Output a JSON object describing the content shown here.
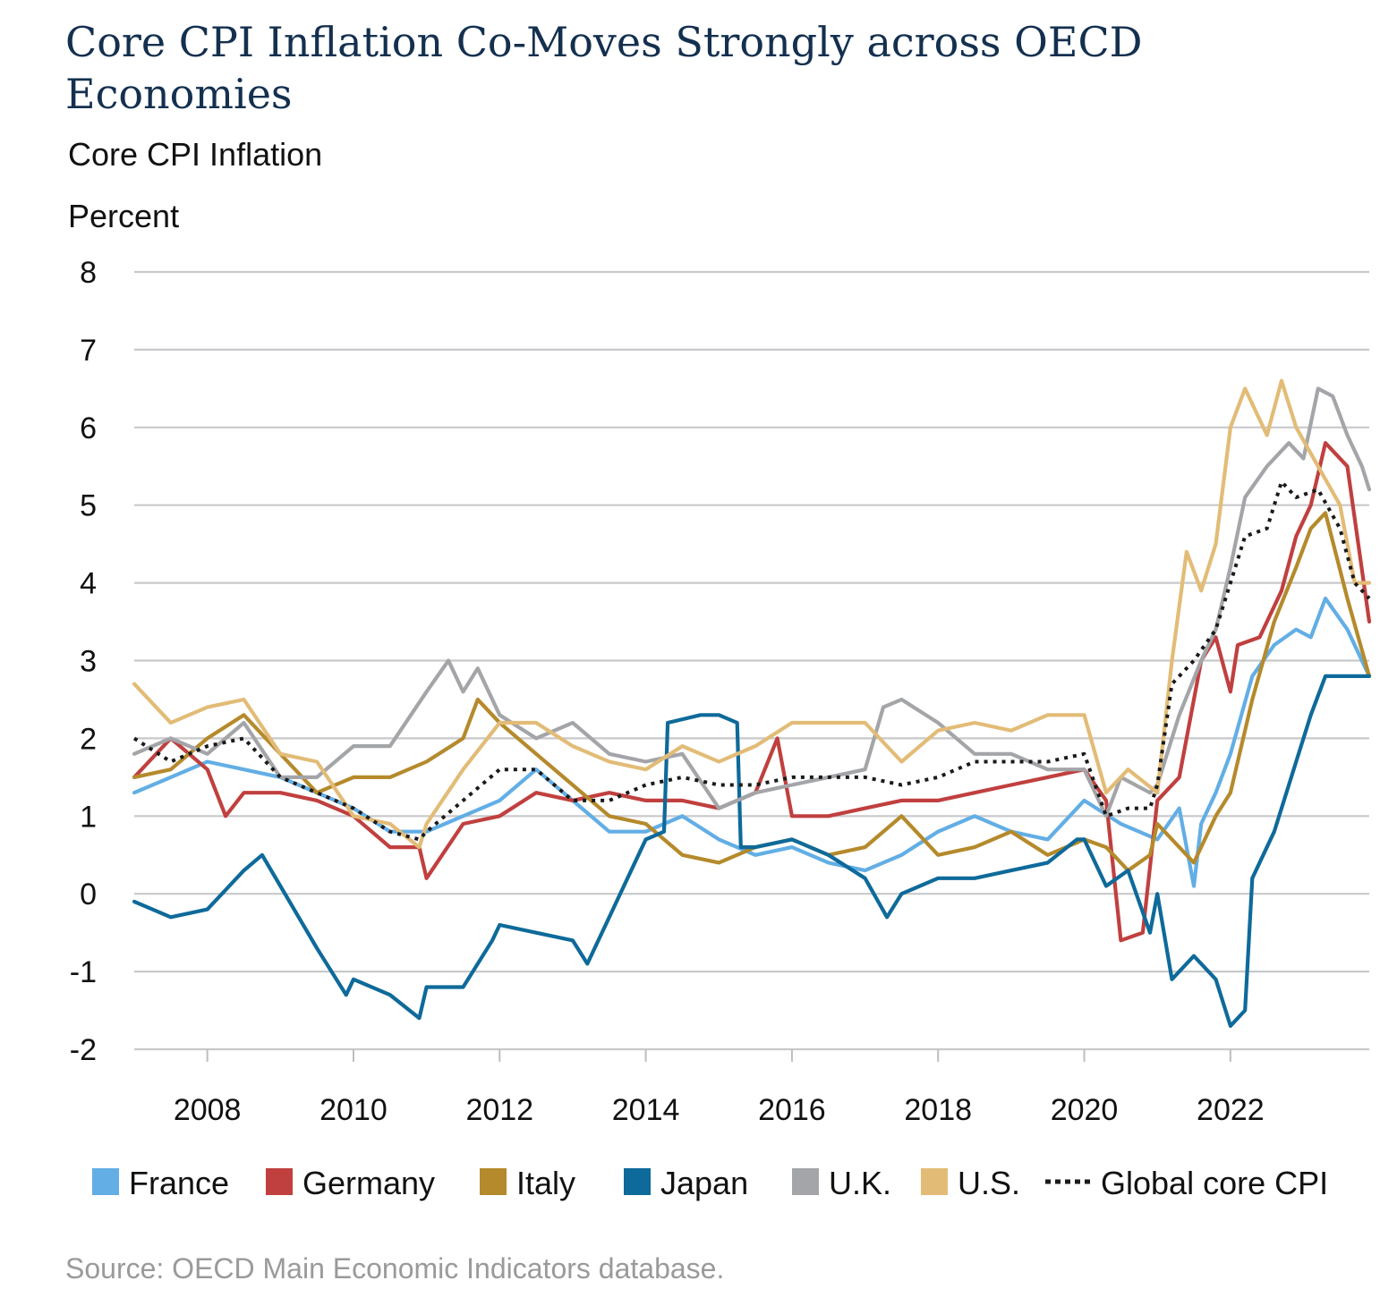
{
  "title": "Core CPI Inflation Co-Moves Strongly across OECD Economies",
  "subtitle": "Core CPI Inflation",
  "unit_label": "Percent",
  "source": "Source: OECD Main Economic Indicators database.",
  "chart_data": {
    "type": "line",
    "title": "Core CPI Inflation Co-Moves Strongly across OECD Economies",
    "ylabel": "Percent",
    "xlabel": "",
    "ylim": [
      -2,
      8
    ],
    "yticks": [
      -2,
      -1,
      0,
      1,
      2,
      3,
      4,
      5,
      6,
      7,
      8
    ],
    "xlim": [
      2007.0,
      2023.9
    ],
    "xticks": [
      2008,
      2010,
      2012,
      2014,
      2016,
      2018,
      2020,
      2022
    ],
    "grid": "horizontal",
    "legend_position": "bottom",
    "series": [
      {
        "name": "France",
        "color": "#62aee5",
        "dash": "solid",
        "x": [
          2007.0,
          2007.5,
          2008.0,
          2008.5,
          2009.0,
          2009.5,
          2010.0,
          2010.5,
          2011.0,
          2011.5,
          2012.0,
          2012.5,
          2013.0,
          2013.5,
          2014.0,
          2014.5,
          2015.0,
          2015.5,
          2016.0,
          2016.5,
          2017.0,
          2017.5,
          2018.0,
          2018.5,
          2019.0,
          2019.5,
          2020.0,
          2020.5,
          2021.0,
          2021.3,
          2021.5,
          2021.6,
          2021.8,
          2022.0,
          2022.3,
          2022.6,
          2022.9,
          2023.1,
          2023.3,
          2023.6,
          2023.9
        ],
        "y": [
          1.3,
          1.5,
          1.7,
          1.6,
          1.5,
          1.3,
          1.1,
          0.8,
          0.8,
          1.0,
          1.2,
          1.6,
          1.2,
          0.8,
          0.8,
          1.0,
          0.7,
          0.5,
          0.6,
          0.4,
          0.3,
          0.5,
          0.8,
          1.0,
          0.8,
          0.7,
          1.2,
          0.9,
          0.7,
          1.1,
          0.1,
          0.9,
          1.3,
          1.8,
          2.8,
          3.2,
          3.4,
          3.3,
          3.8,
          3.4,
          2.8
        ]
      },
      {
        "name": "Germany",
        "color": "#c0403f",
        "dash": "solid",
        "x": [
          2007.0,
          2007.5,
          2008.0,
          2008.25,
          2008.5,
          2009.0,
          2009.5,
          2010.0,
          2010.5,
          2010.9,
          2011.0,
          2011.5,
          2012.0,
          2012.5,
          2013.0,
          2013.5,
          2014.0,
          2014.5,
          2015.0,
          2015.5,
          2015.8,
          2016.0,
          2016.5,
          2017.0,
          2017.5,
          2018.0,
          2018.5,
          2019.0,
          2019.5,
          2020.0,
          2020.3,
          2020.5,
          2020.8,
          2021.0,
          2021.3,
          2021.6,
          2021.8,
          2022.0,
          2022.1,
          2022.4,
          2022.7,
          2022.9,
          2023.1,
          2023.3,
          2023.6,
          2023.9
        ],
        "y": [
          1.5,
          2.0,
          1.6,
          1.0,
          1.3,
          1.3,
          1.2,
          1.0,
          0.6,
          0.6,
          0.2,
          0.9,
          1.0,
          1.3,
          1.2,
          1.3,
          1.2,
          1.2,
          1.1,
          1.3,
          2.0,
          1.0,
          1.0,
          1.1,
          1.2,
          1.2,
          1.3,
          1.4,
          1.5,
          1.6,
          1.2,
          -0.6,
          -0.5,
          1.2,
          1.5,
          3.0,
          3.3,
          2.6,
          3.2,
          3.3,
          3.9,
          4.6,
          5.0,
          5.8,
          5.5,
          3.5
        ]
      },
      {
        "name": "Italy",
        "color": "#b58a2c",
        "dash": "solid",
        "x": [
          2007.0,
          2007.5,
          2008.0,
          2008.5,
          2009.0,
          2009.5,
          2010.0,
          2010.5,
          2011.0,
          2011.5,
          2011.7,
          2012.0,
          2012.5,
          2013.0,
          2013.5,
          2014.0,
          2014.5,
          2015.0,
          2015.5,
          2016.0,
          2016.5,
          2017.0,
          2017.5,
          2018.0,
          2018.5,
          2019.0,
          2019.5,
          2020.0,
          2020.3,
          2020.6,
          2020.9,
          2021.0,
          2021.3,
          2021.5,
          2021.8,
          2022.0,
          2022.3,
          2022.6,
          2022.9,
          2023.1,
          2023.3,
          2023.6,
          2023.9
        ],
        "y": [
          1.5,
          1.6,
          2.0,
          2.3,
          1.8,
          1.3,
          1.5,
          1.5,
          1.7,
          2.0,
          2.5,
          2.2,
          1.8,
          1.4,
          1.0,
          0.9,
          0.5,
          0.4,
          0.6,
          0.7,
          0.5,
          0.6,
          1.0,
          0.5,
          0.6,
          0.8,
          0.5,
          0.7,
          0.6,
          0.3,
          0.5,
          0.9,
          0.6,
          0.4,
          1.0,
          1.3,
          2.5,
          3.5,
          4.2,
          4.7,
          4.9,
          3.8,
          2.8
        ]
      },
      {
        "name": "Japan",
        "color": "#0e6a9a",
        "dash": "solid",
        "x": [
          2007.0,
          2007.5,
          2008.0,
          2008.5,
          2008.75,
          2009.0,
          2009.5,
          2009.9,
          2010.0,
          2010.5,
          2010.9,
          2011.0,
          2011.5,
          2011.9,
          2012.0,
          2012.5,
          2013.0,
          2013.2,
          2013.5,
          2013.9,
          2014.0,
          2014.25,
          2014.3,
          2014.75,
          2015.0,
          2015.25,
          2015.3,
          2015.5,
          2016.0,
          2016.5,
          2017.0,
          2017.3,
          2017.5,
          2018.0,
          2018.5,
          2019.0,
          2019.5,
          2019.9,
          2020.0,
          2020.3,
          2020.6,
          2020.9,
          2021.0,
          2021.2,
          2021.5,
          2021.8,
          2022.0,
          2022.2,
          2022.3,
          2022.6,
          2022.9,
          2023.1,
          2023.3,
          2023.6,
          2023.9
        ],
        "y": [
          -0.1,
          -0.3,
          -0.2,
          0.3,
          0.5,
          0.1,
          -0.7,
          -1.3,
          -1.1,
          -1.3,
          -1.6,
          -1.2,
          -1.2,
          -0.6,
          -0.4,
          -0.5,
          -0.6,
          -0.9,
          -0.3,
          0.5,
          0.7,
          0.8,
          2.2,
          2.3,
          2.3,
          2.2,
          0.6,
          0.6,
          0.7,
          0.5,
          0.2,
          -0.3,
          0.0,
          0.2,
          0.2,
          0.3,
          0.4,
          0.7,
          0.7,
          0.1,
          0.3,
          -0.5,
          0.0,
          -1.1,
          -0.8,
          -1.1,
          -1.7,
          -1.5,
          0.2,
          0.8,
          1.7,
          2.3,
          2.8,
          2.8,
          2.8
        ]
      },
      {
        "name": "U.K.",
        "color": "#a3a5a8",
        "dash": "solid",
        "x": [
          2007.0,
          2007.5,
          2008.0,
          2008.5,
          2009.0,
          2009.5,
          2010.0,
          2010.5,
          2011.0,
          2011.3,
          2011.5,
          2011.7,
          2012.0,
          2012.5,
          2013.0,
          2013.5,
          2014.0,
          2014.5,
          2015.0,
          2015.5,
          2016.0,
          2016.5,
          2017.0,
          2017.25,
          2017.5,
          2018.0,
          2018.5,
          2019.0,
          2019.5,
          2020.0,
          2020.3,
          2020.5,
          2020.9,
          2021.0,
          2021.3,
          2021.6,
          2021.8,
          2022.0,
          2022.2,
          2022.5,
          2022.8,
          2023.0,
          2023.2,
          2023.4,
          2023.6,
          2023.8,
          2023.9
        ],
        "y": [
          1.8,
          2.0,
          1.8,
          2.2,
          1.5,
          1.5,
          1.9,
          1.9,
          2.6,
          3.0,
          2.6,
          2.9,
          2.3,
          2.0,
          2.2,
          1.8,
          1.7,
          1.8,
          1.1,
          1.3,
          1.4,
          1.5,
          1.6,
          2.4,
          2.5,
          2.2,
          1.8,
          1.8,
          1.6,
          1.6,
          1.0,
          1.5,
          1.3,
          1.4,
          2.3,
          3.0,
          3.4,
          4.2,
          5.1,
          5.5,
          5.8,
          5.6,
          6.5,
          6.4,
          5.9,
          5.5,
          5.2
        ]
      },
      {
        "name": "U.S.",
        "color": "#e2bc77",
        "dash": "solid",
        "x": [
          2007.0,
          2007.5,
          2008.0,
          2008.5,
          2009.0,
          2009.5,
          2010.0,
          2010.5,
          2010.9,
          2011.0,
          2011.5,
          2012.0,
          2012.5,
          2013.0,
          2013.5,
          2014.0,
          2014.5,
          2015.0,
          2015.5,
          2016.0,
          2016.5,
          2017.0,
          2017.5,
          2018.0,
          2018.5,
          2019.0,
          2019.5,
          2020.0,
          2020.3,
          2020.6,
          2021.0,
          2021.2,
          2021.4,
          2021.6,
          2021.8,
          2022.0,
          2022.2,
          2022.5,
          2022.7,
          2022.9,
          2023.2,
          2023.5,
          2023.7,
          2023.9
        ],
        "y": [
          2.7,
          2.2,
          2.4,
          2.5,
          1.8,
          1.7,
          1.0,
          0.9,
          0.6,
          0.9,
          1.6,
          2.2,
          2.2,
          1.9,
          1.7,
          1.6,
          1.9,
          1.7,
          1.9,
          2.2,
          2.2,
          2.2,
          1.7,
          2.1,
          2.2,
          2.1,
          2.3,
          2.3,
          1.3,
          1.6,
          1.3,
          3.0,
          4.4,
          3.9,
          4.5,
          6.0,
          6.5,
          5.9,
          6.6,
          6.0,
          5.5,
          5.0,
          4.0,
          4.0
        ]
      },
      {
        "name": "Global core CPI",
        "color": "#1a1a1a",
        "dash": "dotted",
        "x": [
          2007.0,
          2007.5,
          2008.0,
          2008.5,
          2009.0,
          2009.5,
          2010.0,
          2010.5,
          2010.9,
          2011.0,
          2011.5,
          2012.0,
          2012.5,
          2013.0,
          2013.5,
          2014.0,
          2014.5,
          2015.0,
          2015.5,
          2016.0,
          2016.5,
          2017.0,
          2017.5,
          2018.0,
          2018.5,
          2019.0,
          2019.5,
          2020.0,
          2020.3,
          2020.6,
          2020.9,
          2021.0,
          2021.2,
          2021.5,
          2021.8,
          2022.0,
          2022.2,
          2022.5,
          2022.7,
          2022.9,
          2023.2,
          2023.5,
          2023.7,
          2023.9
        ],
        "y": [
          2.0,
          1.7,
          1.9,
          2.0,
          1.5,
          1.3,
          1.1,
          0.8,
          0.7,
          0.8,
          1.2,
          1.6,
          1.6,
          1.2,
          1.2,
          1.4,
          1.5,
          1.4,
          1.4,
          1.5,
          1.5,
          1.5,
          1.4,
          1.5,
          1.7,
          1.7,
          1.7,
          1.8,
          1.0,
          1.1,
          1.1,
          1.4,
          2.7,
          3.0,
          3.4,
          4.0,
          4.6,
          4.7,
          5.3,
          5.1,
          5.2,
          4.7,
          4.0,
          3.8
        ]
      }
    ]
  }
}
